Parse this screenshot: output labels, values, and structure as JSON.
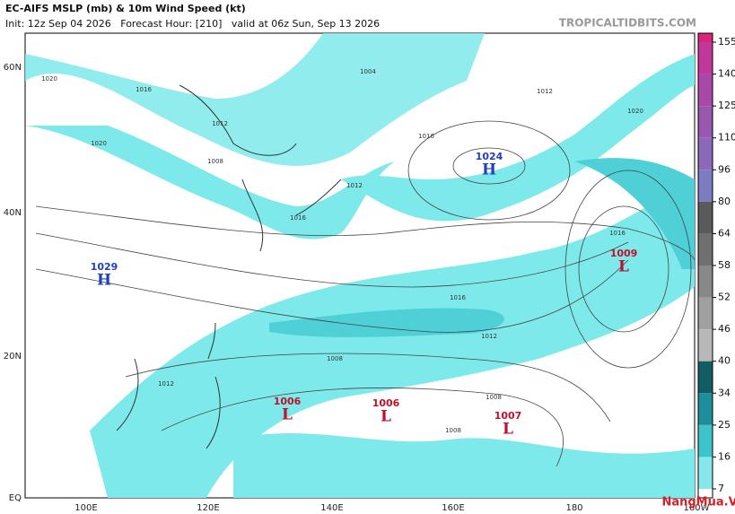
{
  "header": {
    "title": "EC-AIFS MSLP (mb) & 10m Wind Speed (kt)",
    "subtitle": "Init: 12z Sep 04 2026   Forecast Hour: [210]   valid at 06z Sun, Sep 13 2026",
    "site": "TROPICALTIDBITS.COM"
  },
  "map": {
    "lat_labels": [
      "60N",
      "40N",
      "20N",
      "EQ"
    ],
    "lon_labels": [
      "100E",
      "120E",
      "140E",
      "160E",
      "180",
      "160W"
    ],
    "centers": [
      {
        "letter": "H",
        "pressure": 1024
      },
      {
        "letter": "H",
        "pressure": 1029
      },
      {
        "letter": "L",
        "pressure": 1009
      },
      {
        "letter": "L",
        "pressure": 1006
      },
      {
        "letter": "L",
        "pressure": 1006
      },
      {
        "letter": "L",
        "pressure": 1007
      }
    ],
    "isobar_labels": [
      1020,
      1016,
      1012,
      1008,
      1004,
      1020,
      1016,
      1012,
      1016,
      1012,
      1008,
      1008,
      1012,
      1016,
      1020,
      1016,
      1012,
      1008
    ]
  },
  "colorbar": {
    "ticks": [
      155,
      140,
      125,
      110,
      96,
      80,
      64,
      58,
      52,
      46,
      40,
      34,
      25,
      16,
      7
    ],
    "colors": [
      "#d8247a",
      "#c0389a",
      "#a848a8",
      "#9858b0",
      "#8a6ab8",
      "#7c7cc0",
      "#5a5a5a",
      "#707070",
      "#888888",
      "#a0a0a0",
      "#b8b8b8",
      "#125c66",
      "#1e8f9a",
      "#3cc3cc",
      "#86e6ea",
      "#ffffff"
    ]
  },
  "watermark": "NangMua.VN"
}
